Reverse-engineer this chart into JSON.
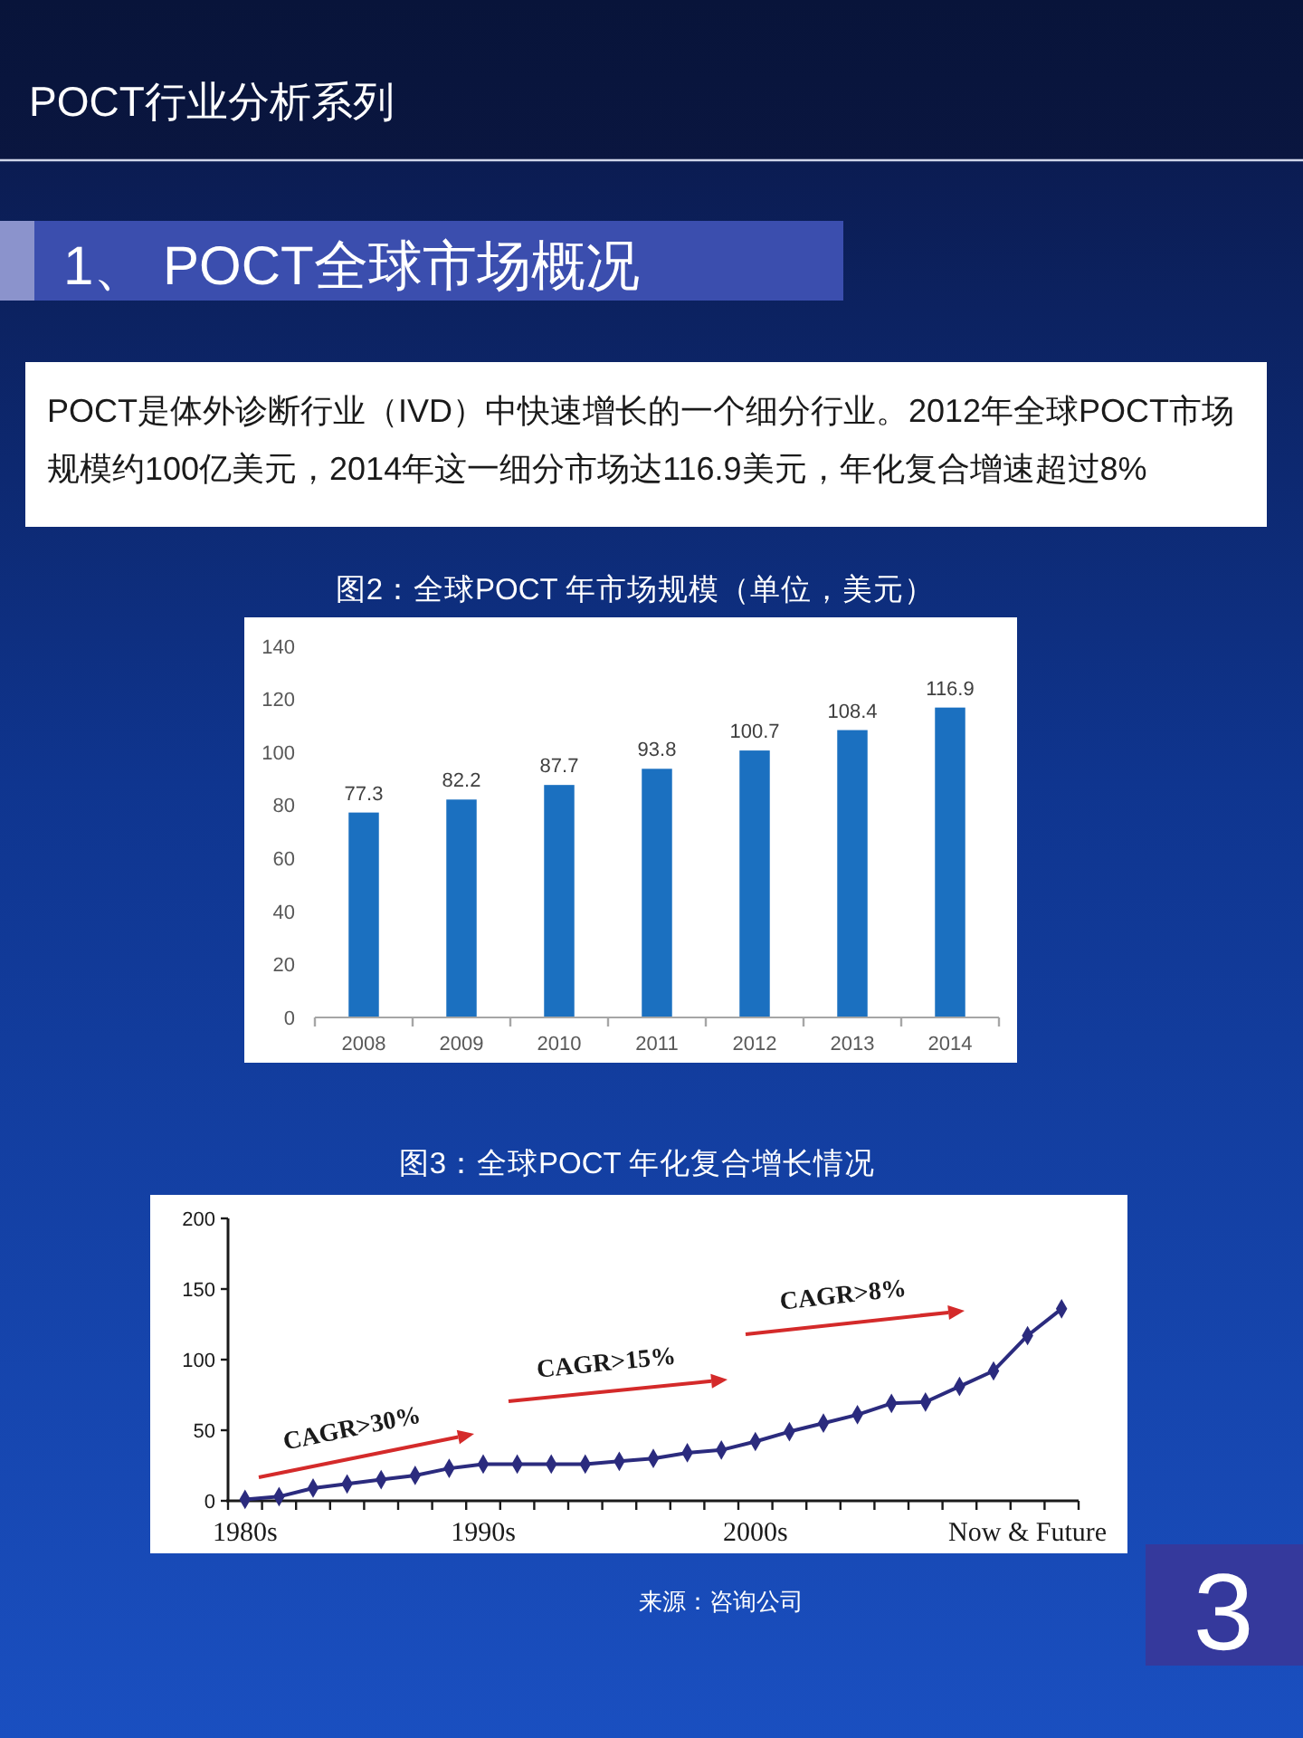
{
  "chart_data": [
    {
      "type": "other",
      "title": "POCT行业分析系列",
      "subtitle": "1、 POCT全球市场概况",
      "annotations": [
        "POCT是体外诊断行业（IVD）中快速增长的一个细分行业。2012年全球POCT市场规模约100亿美元，2014年这一细分市场达116.9美元，年化复合增速超过8%",
        "3"
      ]
    },
    {
      "type": "bar",
      "title": "图2：全球POCT 年市场规模（单位，美元）",
      "categories": [
        "2008",
        "2009",
        "2010",
        "2011",
        "2012",
        "2013",
        "2014"
      ],
      "values": [
        77.3,
        82.2,
        87.7,
        93.8,
        100.7,
        108.4,
        116.9
      ],
      "color": "#1b70c0",
      "ylim": [
        0,
        140
      ],
      "yticks": [
        0,
        20,
        40,
        60,
        80,
        100,
        120,
        140
      ],
      "data_labels": true
    },
    {
      "type": "line",
      "title": "图3：全球POCT 年化复合增长情况",
      "categories": [
        "1980s",
        null,
        null,
        null,
        null,
        null,
        null,
        "1990s",
        null,
        null,
        null,
        null,
        null,
        null,
        null,
        "2000s",
        null,
        null,
        null,
        null,
        null,
        null,
        null,
        "Now & Future",
        null
      ],
      "values": [
        1,
        3,
        9,
        12,
        15,
        18,
        23,
        26,
        26,
        26,
        26,
        28,
        30,
        34,
        36,
        42,
        49,
        55,
        61,
        69,
        70,
        81,
        92,
        117,
        136
      ],
      "color": "#2b2b7e",
      "marker": "diamond",
      "ylim": [
        0,
        200
      ],
      "yticks": [
        0,
        50,
        100,
        150,
        200
      ],
      "annotations": [
        "CAGR>30%",
        "CAGR>15%",
        "CAGR>8%",
        "来源：咨询公司"
      ]
    }
  ]
}
